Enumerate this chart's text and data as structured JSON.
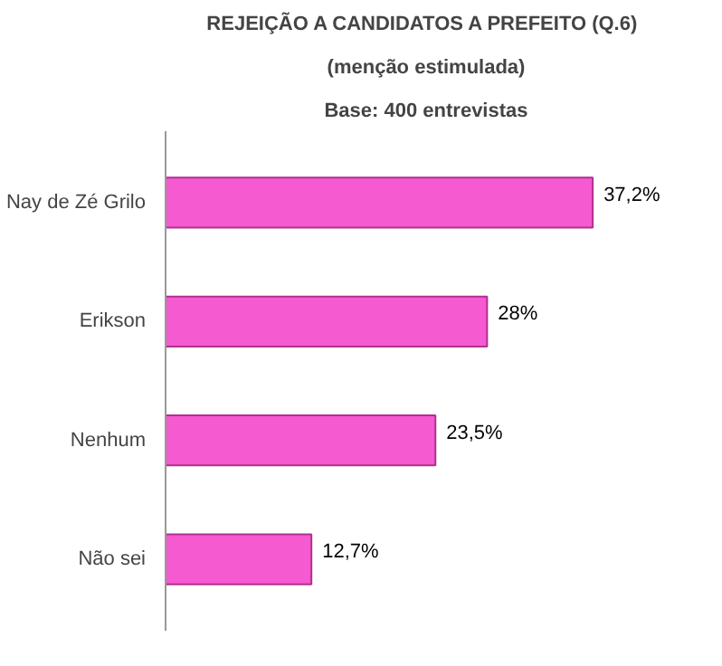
{
  "chart_data": {
    "type": "bar",
    "orientation": "horizontal",
    "title": "REJEIÇÃO A CANDIDATOS A PREFEITO  (Q.6)",
    "subtitle": "(menção estimulada)",
    "annotations": [
      "Base: 400 entrevistas"
    ],
    "categories": [
      "Nay de Zé Grilo",
      "Erikson",
      "Nenhum",
      "Não sei"
    ],
    "values": [
      37.2,
      28,
      23.5,
      12.7
    ],
    "value_labels": [
      "37,2%",
      "28%",
      "23,5%",
      "12,7%"
    ],
    "color": "#f55ad0",
    "grid": false
  }
}
